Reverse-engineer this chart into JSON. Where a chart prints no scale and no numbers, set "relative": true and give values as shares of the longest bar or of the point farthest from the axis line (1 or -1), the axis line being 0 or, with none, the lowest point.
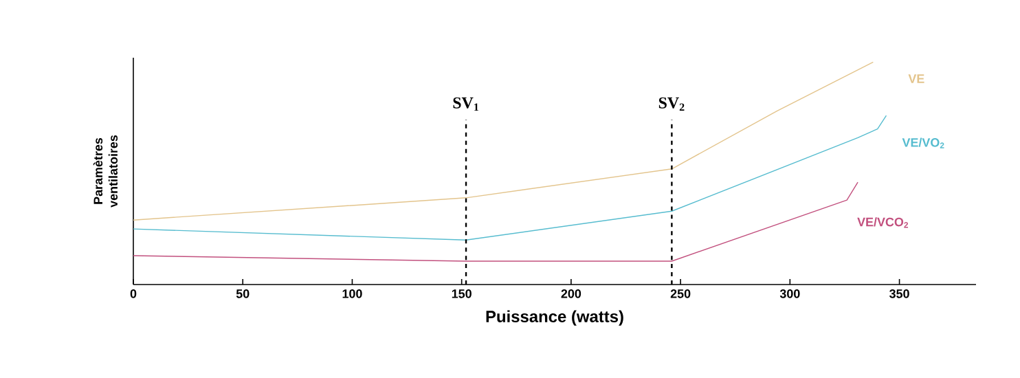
{
  "chart_data": {
    "type": "line",
    "relative": true,
    "xlabel": "Puissance (watts)",
    "ylabel": "Paramètres ventilatoires",
    "xlim": [
      0,
      385
    ],
    "xticks": [
      0,
      50,
      100,
      150,
      200,
      250,
      300,
      350
    ],
    "legend": false,
    "grid": false,
    "series": [
      {
        "name": "VE",
        "color": "#e3c48c",
        "x": [
          0,
          152,
          246,
          294,
          338
        ],
        "values": [
          0.29,
          0.39,
          0.52,
          0.78,
          1.0
        ]
      },
      {
        "name": "VE/VO$_{2}$",
        "color": "#56bccf",
        "x": [
          0,
          152,
          246,
          331,
          340,
          344
        ],
        "values": [
          0.25,
          0.2,
          0.33,
          0.66,
          0.7,
          0.76
        ]
      },
      {
        "name": "VE/VCO$_{2}$",
        "color": "#c2507e",
        "x": [
          0,
          152,
          246,
          326,
          331
        ],
        "values": [
          0.13,
          0.105,
          0.105,
          0.38,
          0.46
        ]
      }
    ],
    "ref_lines": [
      {
        "axis": "x",
        "value": 152,
        "label": "SV$_{1}$",
        "color": "#000000",
        "line_style": "dashed"
      },
      {
        "axis": "x",
        "value": 246,
        "label": "SV$_{2}$",
        "color": "#000000",
        "line_style": "dashed"
      }
    ]
  }
}
